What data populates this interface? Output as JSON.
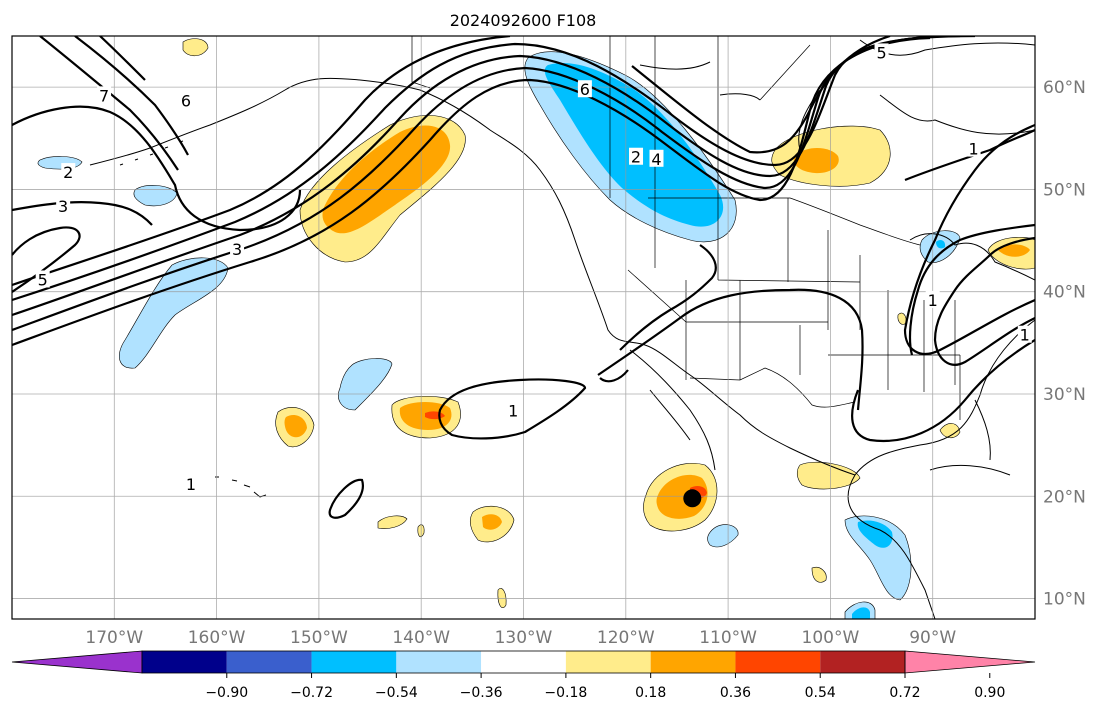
{
  "title": "2024092600 F108",
  "map": {
    "lon_min": -180,
    "lon_max": -80,
    "lat_min": 8,
    "lat_max": 65,
    "gridlines": true,
    "lat_labels": [
      "60°N",
      "50°N",
      "40°N",
      "30°N",
      "20°N",
      "10°N"
    ],
    "lat_values": [
      60,
      50,
      40,
      30,
      20,
      10
    ],
    "lon_labels": [
      "170°W",
      "160°W",
      "150°W",
      "140°W",
      "130°W",
      "120°W",
      "110°W",
      "100°W",
      "90°W"
    ],
    "lon_values": [
      -170,
      -160,
      -150,
      -140,
      -130,
      -120,
      -110,
      -100,
      -90
    ],
    "marker": {
      "lon": -113.5,
      "lat": 19.8,
      "color": "#000000"
    }
  },
  "contour_labels": [
    {
      "text": "7",
      "lon": -171,
      "lat": 59.0
    },
    {
      "text": "6",
      "lon": -163,
      "lat": 58.5
    },
    {
      "text": "2",
      "lon": -174.5,
      "lat": 51.5
    },
    {
      "text": "3",
      "lon": -175,
      "lat": 48.2
    },
    {
      "text": "3",
      "lon": -158,
      "lat": 44.0
    },
    {
      "text": "5",
      "lon": -177,
      "lat": 41.0
    },
    {
      "text": "6",
      "lon": -124,
      "lat": 59.6
    },
    {
      "text": "2",
      "lon": -119,
      "lat": 53.0
    },
    {
      "text": "4",
      "lon": -117,
      "lat": 52.8
    },
    {
      "text": "5",
      "lon": -95,
      "lat": 63.2
    },
    {
      "text": "1",
      "lon": -86,
      "lat": 53.8
    },
    {
      "text": "1",
      "lon": -90,
      "lat": 39.0
    },
    {
      "text": "1",
      "lon": -81,
      "lat": 35.6
    },
    {
      "text": "1",
      "lon": -131,
      "lat": 28.2
    },
    {
      "text": "1",
      "lon": -162.5,
      "lat": 21.0
    }
  ],
  "colorbar": {
    "colors": [
      "#9a32cd",
      "#00008b",
      "#3a5fcd",
      "#00bfff",
      "#b0e2ff",
      "#ffffff",
      "#ffec8b",
      "#ffa500",
      "#ff4500",
      "#b22222",
      "#ff83a8"
    ],
    "tick_labels": [
      "−0.90",
      "−0.72",
      "−0.54",
      "−0.36",
      "−0.18",
      "0.18",
      "0.36",
      "0.54",
      "0.72",
      "0.90"
    ]
  }
}
